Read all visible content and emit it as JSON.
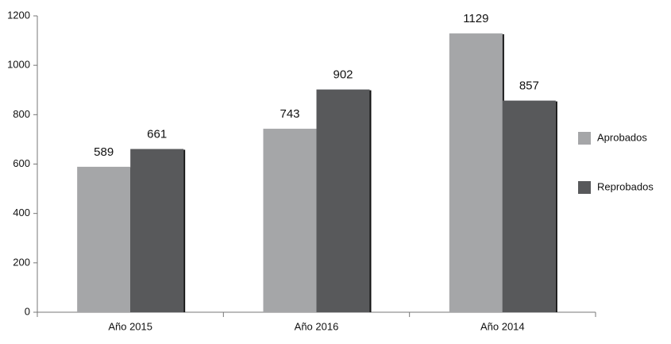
{
  "chart_data": {
    "type": "bar",
    "categories": [
      "Año 2015",
      "Año 2016",
      "Año 2014"
    ],
    "series": [
      {
        "name": "Aprobados",
        "color": "#a5a6a8",
        "values": [
          589,
          743,
          1129
        ]
      },
      {
        "name": "Reprobados",
        "color": "#58595b",
        "values": [
          661,
          902,
          857
        ]
      }
    ],
    "ylim": [
      0,
      1200
    ],
    "yticks": [
      0,
      200,
      400,
      600,
      800,
      1000,
      1200
    ],
    "grid": false,
    "legend": "right",
    "data_labels": true
  }
}
